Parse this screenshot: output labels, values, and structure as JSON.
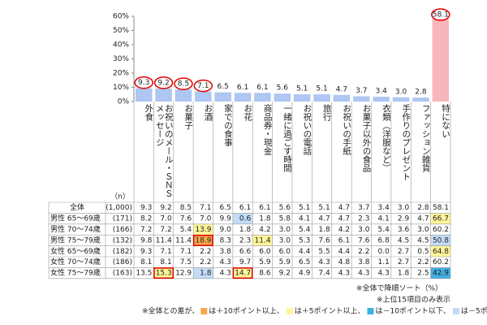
{
  "chart_data": {
    "type": "bar",
    "categories": [
      "外食",
      "お祝いのメール・ＳＮＳメッセージ",
      "お菓子",
      "お酒",
      "家での食事",
      "お花",
      "商品券・現金",
      "一緒に過ごす時間",
      "お祝いの電話",
      "旅行",
      "お祝いの手紙",
      "お菓子以外の食品",
      "衣類（洋服など）",
      "手作りのプレゼント",
      "ファッション雑貨",
      "特にない"
    ],
    "values": [
      9.3,
      9.2,
      8.5,
      7.1,
      6.5,
      6.1,
      6.1,
      5.6,
      5.1,
      5.1,
      4.7,
      3.7,
      3.4,
      3.0,
      2.8,
      58.1
    ],
    "value_labels": [
      "9.3",
      "9.2",
      "8.5",
      "7.1",
      "6.5",
      "6.1",
      "6.1",
      "5.6",
      "5.1",
      "5.1",
      "4.7",
      "3.7",
      "3.4",
      "3.0",
      "2.8",
      "58.1"
    ],
    "colors": [
      "#aec6f2",
      "#aec6f2",
      "#aec6f2",
      "#aec6f2",
      "#aec6f2",
      "#aec6f2",
      "#aec6f2",
      "#aec6f2",
      "#aec6f2",
      "#aec6f2",
      "#aec6f2",
      "#aec6f2",
      "#aec6f2",
      "#aec6f2",
      "#aec6f2",
      "#f8b6bb"
    ],
    "circled": [
      0,
      1,
      2,
      3,
      15
    ],
    "ylim": [
      0,
      60
    ],
    "yticks": [
      {
        "value": 0,
        "label": "0%"
      },
      {
        "value": 10,
        "label": "10%"
      },
      {
        "value": 20,
        "label": "20%"
      },
      {
        "value": 30,
        "label": "30%"
      },
      {
        "value": 40,
        "label": "40%"
      },
      {
        "value": 50,
        "label": "50%"
      },
      {
        "value": 60,
        "label": "60%"
      }
    ]
  },
  "table": {
    "n_header": "（n）",
    "rows": [
      {
        "label": "全体",
        "n": "(1,000)",
        "values": [
          "9.3",
          "9.2",
          "8.5",
          "7.1",
          "6.5",
          "6.1",
          "6.1",
          "5.6",
          "5.1",
          "5.1",
          "4.7",
          "3.7",
          "3.4",
          "3.0",
          "2.8",
          "58.1"
        ]
      },
      {
        "label": "男性 65～69歳",
        "n": "(171)",
        "values": [
          "8.2",
          "7.0",
          "7.6",
          "7.0",
          "9.9",
          "0.6",
          "1.8",
          "5.8",
          "4.1",
          "4.7",
          "4.7",
          "2.3",
          "4.1",
          "2.9",
          "4.7",
          "66.7"
        ]
      },
      {
        "label": "男性 70～74歳",
        "n": "(166)",
        "values": [
          "7.2",
          "7.2",
          "5.4",
          "13.9",
          "9.0",
          "1.8",
          "4.2",
          "3.0",
          "5.4",
          "1.8",
          "4.2",
          "3.0",
          "5.4",
          "3.6",
          "3.0",
          "60.2"
        ]
      },
      {
        "label": "男性 75～79歳",
        "n": "(132)",
        "values": [
          "9.8",
          "11.4",
          "11.4",
          "18.9",
          "8.3",
          "2.3",
          "11.4",
          "3.0",
          "5.3",
          "7.6",
          "6.1",
          "7.6",
          "6.8",
          "4.5",
          "4.5",
          "50.8"
        ]
      },
      {
        "label": "女性 65～69歳",
        "n": "(182)",
        "values": [
          "9.3",
          "7.1",
          "7.1",
          "2.2",
          "3.8",
          "6.6",
          "6.0",
          "6.0",
          "4.4",
          "5.5",
          "4.4",
          "2.2",
          "0.0",
          "2.7",
          "0.5",
          "64.8"
        ]
      },
      {
        "label": "女性 70～74歳",
        "n": "(186)",
        "values": [
          "8.1",
          "8.1",
          "7.5",
          "2.2",
          "4.3",
          "9.7",
          "5.9",
          "5.9",
          "6.5",
          "4.3",
          "4.8",
          "3.8",
          "1.1",
          "2.7",
          "2.2",
          "60.2"
        ]
      },
      {
        "label": "女性 75～79歳",
        "n": "(163)",
        "values": [
          "13.5",
          "15.3",
          "12.9",
          "1.8",
          "4.3",
          "14.7",
          "8.6",
          "9.2",
          "4.9",
          "7.4",
          "4.3",
          "4.3",
          "4.3",
          "1.8",
          "2.5",
          "42.9"
        ]
      }
    ],
    "highlights": [
      {
        "row": 3,
        "col": 3,
        "level": 0,
        "boxed": true
      },
      {
        "row": 6,
        "col": 1,
        "level": 1,
        "boxed": true
      },
      {
        "row": 6,
        "col": 5,
        "level": 1,
        "boxed": true
      },
      {
        "row": 2,
        "col": 3,
        "level": 1,
        "boxed": false
      },
      {
        "row": 3,
        "col": 6,
        "level": 1,
        "boxed": false
      },
      {
        "row": 1,
        "col": 15,
        "level": 1,
        "boxed": false
      },
      {
        "row": 4,
        "col": 15,
        "level": 1,
        "boxed": false
      },
      {
        "row": 6,
        "col": 15,
        "level": 2,
        "boxed": false
      },
      {
        "row": 1,
        "col": 5,
        "level": 3,
        "boxed": false
      },
      {
        "row": 6,
        "col": 3,
        "level": 3,
        "boxed": false
      },
      {
        "row": 3,
        "col": 15,
        "level": 3,
        "boxed": false
      }
    ]
  },
  "notes": [
    "※全体で降順ソート（%）",
    "※上位15項目のみ表示"
  ],
  "legend": {
    "prefix": "※全体との差が、",
    "items": [
      {
        "color": "#f8a84a",
        "label": "は＋10ポイント以上、"
      },
      {
        "color": "#fff59a",
        "label": "は＋5ポイント以上、"
      },
      {
        "color": "#3fb0e4",
        "label": "は－10ポイント以下、"
      },
      {
        "color": "#c3dbf6",
        "label": "は－5ポイント以下"
      }
    ]
  }
}
